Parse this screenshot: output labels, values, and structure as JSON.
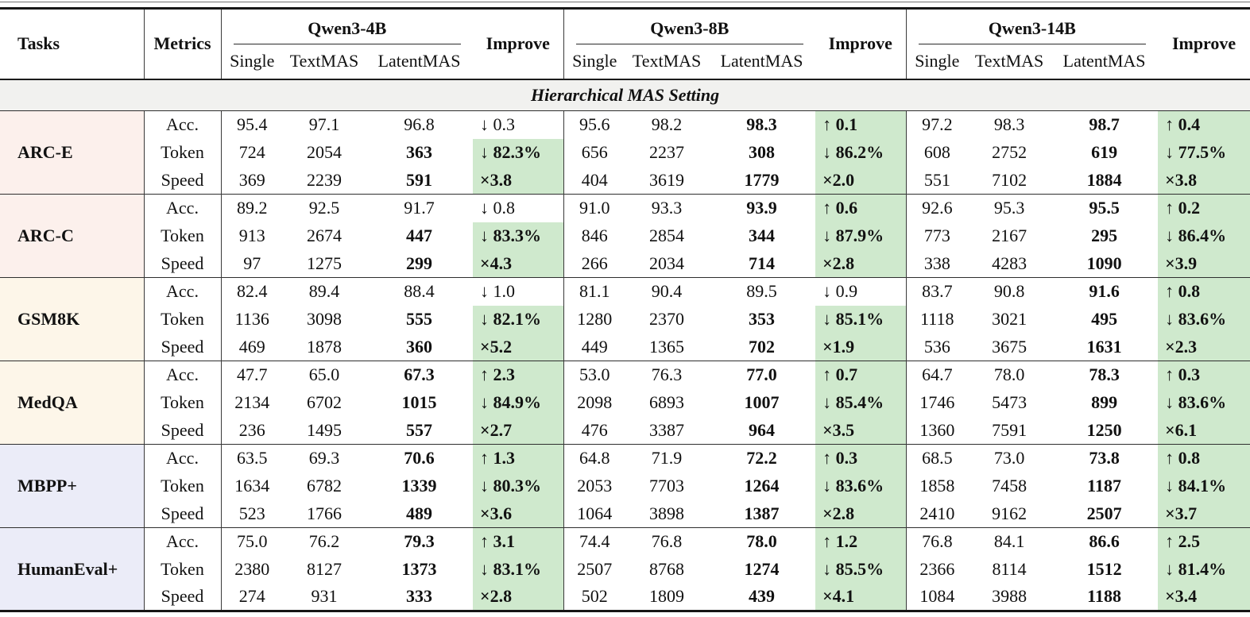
{
  "table_header": {
    "tasks": "Tasks",
    "metrics": "Metrics",
    "improve": "Improve",
    "models": [
      "Qwen3-4B",
      "Qwen3-8B",
      "Qwen3-14B"
    ],
    "subcolumns": [
      "Single",
      "TextMAS",
      "LatentMAS"
    ]
  },
  "section_banner": "Hierarchical MAS Setting",
  "metric_labels": [
    "Acc.",
    "Token",
    "Speed"
  ],
  "colors": {
    "task_tint_pink": "#fcf0ec",
    "task_tint_cream": "#fdf6e9",
    "task_tint_lavender": "#ebecf8",
    "improve_green": "#cfe9cd",
    "banner_gray": "#f1f1ef",
    "rule_black": "#161616"
  },
  "results": [
    {
      "task": "ARC-E",
      "tint": "pink",
      "rows": [
        {
          "metric": "Acc.",
          "models": [
            {
              "single": "95.4",
              "textmas": "97.1",
              "latentmas": "96.8",
              "latent_bold": false,
              "improve": "↓ 0.3",
              "green": false
            },
            {
              "single": "95.6",
              "textmas": "98.2",
              "latentmas": "98.3",
              "latent_bold": true,
              "improve": "↑ 0.1",
              "green": true
            },
            {
              "single": "97.2",
              "textmas": "98.3",
              "latentmas": "98.7",
              "latent_bold": true,
              "improve": "↑ 0.4",
              "green": true
            }
          ]
        },
        {
          "metric": "Token",
          "models": [
            {
              "single": "724",
              "textmas": "2054",
              "latentmas": "363",
              "latent_bold": true,
              "improve": "↓ 82.3%",
              "green": true
            },
            {
              "single": "656",
              "textmas": "2237",
              "latentmas": "308",
              "latent_bold": true,
              "improve": "↓ 86.2%",
              "green": true
            },
            {
              "single": "608",
              "textmas": "2752",
              "latentmas": "619",
              "latent_bold": true,
              "improve": "↓ 77.5%",
              "green": true
            }
          ]
        },
        {
          "metric": "Speed",
          "models": [
            {
              "single": "369",
              "textmas": "2239",
              "latentmas": "591",
              "latent_bold": true,
              "improve": "×3.8",
              "green": true
            },
            {
              "single": "404",
              "textmas": "3619",
              "latentmas": "1779",
              "latent_bold": true,
              "improve": "×2.0",
              "green": true
            },
            {
              "single": "551",
              "textmas": "7102",
              "latentmas": "1884",
              "latent_bold": true,
              "improve": "×3.8",
              "green": true
            }
          ]
        }
      ]
    },
    {
      "task": "ARC-C",
      "tint": "pink",
      "rows": [
        {
          "metric": "Acc.",
          "models": [
            {
              "single": "89.2",
              "textmas": "92.5",
              "latentmas": "91.7",
              "latent_bold": false,
              "improve": "↓ 0.8",
              "green": false
            },
            {
              "single": "91.0",
              "textmas": "93.3",
              "latentmas": "93.9",
              "latent_bold": true,
              "improve": "↑ 0.6",
              "green": true
            },
            {
              "single": "92.6",
              "textmas": "95.3",
              "latentmas": "95.5",
              "latent_bold": true,
              "improve": "↑ 0.2",
              "green": true
            }
          ]
        },
        {
          "metric": "Token",
          "models": [
            {
              "single": "913",
              "textmas": "2674",
              "latentmas": "447",
              "latent_bold": true,
              "improve": "↓ 83.3%",
              "green": true
            },
            {
              "single": "846",
              "textmas": "2854",
              "latentmas": "344",
              "latent_bold": true,
              "improve": "↓ 87.9%",
              "green": true
            },
            {
              "single": "773",
              "textmas": "2167",
              "latentmas": "295",
              "latent_bold": true,
              "improve": "↓ 86.4%",
              "green": true
            }
          ]
        },
        {
          "metric": "Speed",
          "models": [
            {
              "single": "97",
              "textmas": "1275",
              "latentmas": "299",
              "latent_bold": true,
              "improve": "×4.3",
              "green": true
            },
            {
              "single": "266",
              "textmas": "2034",
              "latentmas": "714",
              "latent_bold": true,
              "improve": "×2.8",
              "green": true
            },
            {
              "single": "338",
              "textmas": "4283",
              "latentmas": "1090",
              "latent_bold": true,
              "improve": "×3.9",
              "green": true
            }
          ]
        }
      ]
    },
    {
      "task": "GSM8K",
      "tint": "cream",
      "rows": [
        {
          "metric": "Acc.",
          "models": [
            {
              "single": "82.4",
              "textmas": "89.4",
              "latentmas": "88.4",
              "latent_bold": false,
              "improve": "↓ 1.0",
              "green": false
            },
            {
              "single": "81.1",
              "textmas": "90.4",
              "latentmas": "89.5",
              "latent_bold": false,
              "improve": "↓ 0.9",
              "green": false
            },
            {
              "single": "83.7",
              "textmas": "90.8",
              "latentmas": "91.6",
              "latent_bold": true,
              "improve": "↑ 0.8",
              "green": true
            }
          ]
        },
        {
          "metric": "Token",
          "models": [
            {
              "single": "1136",
              "textmas": "3098",
              "latentmas": "555",
              "latent_bold": true,
              "improve": "↓ 82.1%",
              "green": true
            },
            {
              "single": "1280",
              "textmas": "2370",
              "latentmas": "353",
              "latent_bold": true,
              "improve": "↓ 85.1%",
              "green": true
            },
            {
              "single": "1118",
              "textmas": "3021",
              "latentmas": "495",
              "latent_bold": true,
              "improve": "↓ 83.6%",
              "green": true
            }
          ]
        },
        {
          "metric": "Speed",
          "models": [
            {
              "single": "469",
              "textmas": "1878",
              "latentmas": "360",
              "latent_bold": true,
              "improve": "×5.2",
              "green": true
            },
            {
              "single": "449",
              "textmas": "1365",
              "latentmas": "702",
              "latent_bold": true,
              "improve": "×1.9",
              "green": true
            },
            {
              "single": "536",
              "textmas": "3675",
              "latentmas": "1631",
              "latent_bold": true,
              "improve": "×2.3",
              "green": true
            }
          ]
        }
      ]
    },
    {
      "task": "MedQA",
      "tint": "cream",
      "rows": [
        {
          "metric": "Acc.",
          "models": [
            {
              "single": "47.7",
              "textmas": "65.0",
              "latentmas": "67.3",
              "latent_bold": true,
              "improve": "↑ 2.3",
              "green": true
            },
            {
              "single": "53.0",
              "textmas": "76.3",
              "latentmas": "77.0",
              "latent_bold": true,
              "improve": "↑ 0.7",
              "green": true
            },
            {
              "single": "64.7",
              "textmas": "78.0",
              "latentmas": "78.3",
              "latent_bold": true,
              "improve": "↑ 0.3",
              "green": true
            }
          ]
        },
        {
          "metric": "Token",
          "models": [
            {
              "single": "2134",
              "textmas": "6702",
              "latentmas": "1015",
              "latent_bold": true,
              "improve": "↓ 84.9%",
              "green": true
            },
            {
              "single": "2098",
              "textmas": "6893",
              "latentmas": "1007",
              "latent_bold": true,
              "improve": "↓ 85.4%",
              "green": true
            },
            {
              "single": "1746",
              "textmas": "5473",
              "latentmas": "899",
              "latent_bold": true,
              "improve": "↓ 83.6%",
              "green": true
            }
          ]
        },
        {
          "metric": "Speed",
          "models": [
            {
              "single": "236",
              "textmas": "1495",
              "latentmas": "557",
              "latent_bold": true,
              "improve": "×2.7",
              "green": true
            },
            {
              "single": "476",
              "textmas": "3387",
              "latentmas": "964",
              "latent_bold": true,
              "improve": "×3.5",
              "green": true
            },
            {
              "single": "1360",
              "textmas": "7591",
              "latentmas": "1250",
              "latent_bold": true,
              "improve": "×6.1",
              "green": true
            }
          ]
        }
      ]
    },
    {
      "task": "MBPP+",
      "tint": "lavender",
      "rows": [
        {
          "metric": "Acc.",
          "models": [
            {
              "single": "63.5",
              "textmas": "69.3",
              "latentmas": "70.6",
              "latent_bold": true,
              "improve": "↑ 1.3",
              "green": true
            },
            {
              "single": "64.8",
              "textmas": "71.9",
              "latentmas": "72.2",
              "latent_bold": true,
              "improve": "↑ 0.3",
              "green": true
            },
            {
              "single": "68.5",
              "textmas": "73.0",
              "latentmas": "73.8",
              "latent_bold": true,
              "improve": "↑ 0.8",
              "green": true
            }
          ]
        },
        {
          "metric": "Token",
          "models": [
            {
              "single": "1634",
              "textmas": "6782",
              "latentmas": "1339",
              "latent_bold": true,
              "improve": "↓ 80.3%",
              "green": true
            },
            {
              "single": "2053",
              "textmas": "7703",
              "latentmas": "1264",
              "latent_bold": true,
              "improve": "↓ 83.6%",
              "green": true
            },
            {
              "single": "1858",
              "textmas": "7458",
              "latentmas": "1187",
              "latent_bold": true,
              "improve": "↓ 84.1%",
              "green": true
            }
          ]
        },
        {
          "metric": "Speed",
          "models": [
            {
              "single": "523",
              "textmas": "1766",
              "latentmas": "489",
              "latent_bold": true,
              "improve": "×3.6",
              "green": true
            },
            {
              "single": "1064",
              "textmas": "3898",
              "latentmas": "1387",
              "latent_bold": true,
              "improve": "×2.8",
              "green": true
            },
            {
              "single": "2410",
              "textmas": "9162",
              "latentmas": "2507",
              "latent_bold": true,
              "improve": "×3.7",
              "green": true
            }
          ]
        }
      ]
    },
    {
      "task": "HumanEval+",
      "tint": "lavender",
      "rows": [
        {
          "metric": "Acc.",
          "models": [
            {
              "single": "75.0",
              "textmas": "76.2",
              "latentmas": "79.3",
              "latent_bold": true,
              "improve": "↑ 3.1",
              "green": true
            },
            {
              "single": "74.4",
              "textmas": "76.8",
              "latentmas": "78.0",
              "latent_bold": true,
              "improve": "↑ 1.2",
              "green": true
            },
            {
              "single": "76.8",
              "textmas": "84.1",
              "latentmas": "86.6",
              "latent_bold": true,
              "improve": "↑ 2.5",
              "green": true
            }
          ]
        },
        {
          "metric": "Token",
          "models": [
            {
              "single": "2380",
              "textmas": "8127",
              "latentmas": "1373",
              "latent_bold": true,
              "improve": "↓ 83.1%",
              "green": true
            },
            {
              "single": "2507",
              "textmas": "8768",
              "latentmas": "1274",
              "latent_bold": true,
              "improve": "↓ 85.5%",
              "green": true
            },
            {
              "single": "2366",
              "textmas": "8114",
              "latentmas": "1512",
              "latent_bold": true,
              "improve": "↓ 81.4%",
              "green": true
            }
          ]
        },
        {
          "metric": "Speed",
          "models": [
            {
              "single": "274",
              "textmas": "931",
              "latentmas": "333",
              "latent_bold": true,
              "improve": "×2.8",
              "green": true
            },
            {
              "single": "502",
              "textmas": "1809",
              "latentmas": "439",
              "latent_bold": true,
              "improve": "×4.1",
              "green": true
            },
            {
              "single": "1084",
              "textmas": "3988",
              "latentmas": "1188",
              "latent_bold": true,
              "improve": "×3.4",
              "green": true
            }
          ]
        }
      ]
    }
  ]
}
